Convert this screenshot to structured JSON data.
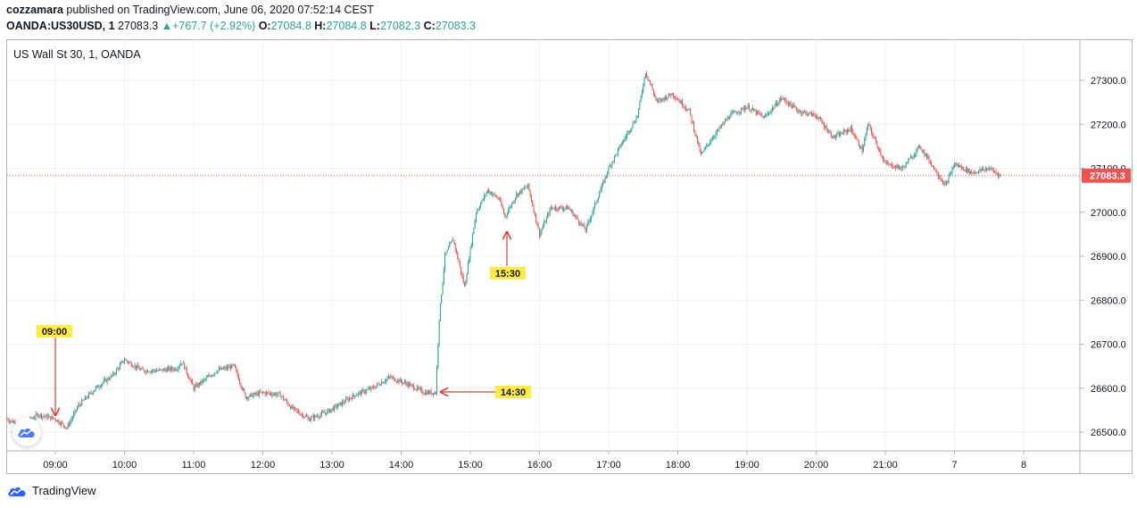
{
  "header": {
    "publisher": "cozzamara",
    "published_text": "published on TradingView.com, June 06, 2020 07:52:14 CEST",
    "symbol": "OANDA:US30USD, 1",
    "last": "27083.3",
    "change": "+767.7 (+2.92%)",
    "o_label": "O:",
    "o_value": "27084.8",
    "h_label": "H:",
    "h_value": "27084.8",
    "l_label": "L:",
    "l_value": "27082.3",
    "c_label": "C:",
    "c_value": "27083.3"
  },
  "chart_title": "US Wall St 30, 1, OANDA",
  "footer": {
    "brand": "TradingView"
  },
  "colors": {
    "up": "#26a69a",
    "down": "#ef5350",
    "annotation_bg": "#ffeb3b",
    "arrow": "#e53935",
    "price_line": "#ef5350"
  },
  "chart_data": {
    "type": "candlestick",
    "x_ticks": [
      "09:00",
      "10:00",
      "11:00",
      "12:00",
      "13:00",
      "14:00",
      "15:00",
      "16:00",
      "17:00",
      "18:00",
      "19:00",
      "20:00",
      "21:00",
      "7",
      "8"
    ],
    "y_ticks": [
      "26500.0",
      "26600.0",
      "26700.0",
      "26800.0",
      "26900.0",
      "27000.0",
      "27100.0",
      "27200.0",
      "27300.0"
    ],
    "ylim": [
      26455,
      27355
    ],
    "current_price": 27083.3,
    "current_price_label": "27083.3",
    "grid": true,
    "price_path": [
      [
        "08:18",
        26530
      ],
      [
        "08:30",
        26515
      ],
      [
        "08:45",
        26540
      ],
      [
        "09:00",
        26530
      ],
      [
        "09:10",
        26510
      ],
      [
        "09:20",
        26560
      ],
      [
        "09:35",
        26600
      ],
      [
        "09:50",
        26630
      ],
      [
        "10:00",
        26665
      ],
      [
        "10:15",
        26640
      ],
      [
        "10:30",
        26640
      ],
      [
        "10:45",
        26645
      ],
      [
        "10:50",
        26660
      ],
      [
        "11:00",
        26600
      ],
      [
        "11:10",
        26620
      ],
      [
        "11:20",
        26640
      ],
      [
        "11:35",
        26650
      ],
      [
        "11:45",
        26580
      ],
      [
        "12:00",
        26590
      ],
      [
        "12:15",
        26585
      ],
      [
        "12:25",
        26555
      ],
      [
        "12:40",
        26530
      ],
      [
        "12:55",
        26545
      ],
      [
        "13:05",
        26560
      ],
      [
        "13:20",
        26585
      ],
      [
        "13:35",
        26600
      ],
      [
        "13:50",
        26625
      ],
      [
        "14:05",
        26610
      ],
      [
        "14:20",
        26590
      ],
      [
        "14:30",
        26590
      ],
      [
        "14:33",
        26760
      ],
      [
        "14:38",
        26900
      ],
      [
        "14:45",
        26940
      ],
      [
        "14:55",
        26830
      ],
      [
        "15:05",
        27000
      ],
      [
        "15:15",
        27050
      ],
      [
        "15:25",
        27030
      ],
      [
        "15:30",
        26990
      ],
      [
        "15:40",
        27040
      ],
      [
        "15:50",
        27060
      ],
      [
        "16:00",
        26950
      ],
      [
        "16:10",
        27010
      ],
      [
        "16:25",
        27010
      ],
      [
        "16:40",
        26960
      ],
      [
        "16:50",
        27030
      ],
      [
        "17:00",
        27100
      ],
      [
        "17:10",
        27150
      ],
      [
        "17:25",
        27220
      ],
      [
        "17:32",
        27320
      ],
      [
        "17:42",
        27250
      ],
      [
        "17:55",
        27270
      ],
      [
        "18:10",
        27230
      ],
      [
        "18:20",
        27130
      ],
      [
        "18:30",
        27170
      ],
      [
        "18:45",
        27220
      ],
      [
        "19:00",
        27240
      ],
      [
        "19:15",
        27215
      ],
      [
        "19:30",
        27260
      ],
      [
        "19:45",
        27230
      ],
      [
        "20:00",
        27220
      ],
      [
        "20:15",
        27170
      ],
      [
        "20:30",
        27190
      ],
      [
        "20:40",
        27140
      ],
      [
        "20:45",
        27200
      ],
      [
        "21:00",
        27110
      ],
      [
        "21:15",
        27100
      ],
      [
        "21:30",
        27150
      ],
      [
        "21:45",
        27090
      ],
      [
        "21:52",
        27060
      ],
      [
        "22:00",
        27110
      ],
      [
        "22:15",
        27090
      ],
      [
        "22:30",
        27100
      ],
      [
        "22:40",
        27083
      ]
    ],
    "annotations": [
      {
        "label": "09:00",
        "at": "09:00"
      },
      {
        "label": "15:30",
        "at": "15:30"
      },
      {
        "label": "14:30",
        "at": "14:30"
      }
    ]
  }
}
